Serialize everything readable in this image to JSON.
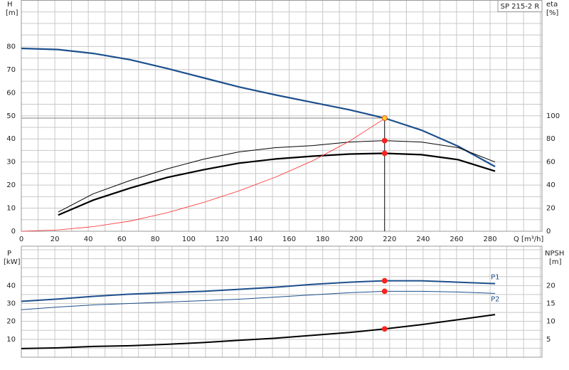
{
  "chart_data": [
    {
      "type": "line",
      "title": "SP 215-2 R",
      "xlabel": "Q [m³/h]",
      "ylabel": "H",
      "yunit": "[m]",
      "y2label": "eta",
      "y2unit": "[%]",
      "xlim": [
        0,
        311
      ],
      "ylim": [
        0,
        100
      ],
      "y2lim": [
        0,
        200
      ],
      "xticks": [
        0,
        20,
        40,
        60,
        80,
        100,
        120,
        140,
        160,
        180,
        200,
        220,
        240,
        260,
        280
      ],
      "yticks": [
        0,
        10,
        20,
        30,
        40,
        50,
        60,
        70,
        80
      ],
      "y2ticks": [
        0,
        20,
        40,
        60,
        80,
        100
      ],
      "grid": true,
      "duty_q": 217,
      "x": [
        0,
        22,
        43,
        65,
        87,
        109,
        130,
        152,
        174,
        196,
        217,
        239,
        261,
        283
      ],
      "series": [
        {
          "color": "#1d4f8c",
          "width": 2.2,
          "duty_marker_color": "#ffd21f",
          "duty_lines": true,
          "values": [
            79.2,
            78.7,
            77,
            74.3,
            70.5,
            66.4,
            62.5,
            59,
            55.8,
            52.6,
            49,
            43.8,
            36.8,
            28
          ]
        },
        {
          "color": "#000000",
          "width": 1,
          "axis": "y2",
          "duty_marker_color": "#ff2020",
          "values": [
            null,
            16.6,
            32.5,
            44,
            54,
            62.5,
            68.7,
            72.4,
            74.2,
            77.3,
            78.5,
            77.3,
            72.4,
            60
          ]
        },
        {
          "color": "#000000",
          "width": 2.2,
          "axis": "y2",
          "duty_marker_color": "#ff2020",
          "values": [
            null,
            14,
            27,
            37.4,
            46.6,
            53.4,
            59,
            62.6,
            65,
            66.9,
            67.5,
            66.3,
            62,
            52
          ]
        },
        {
          "color": "#ff2a2a",
          "width": 0.8,
          "values": [
            0,
            0.6,
            2,
            4.4,
            8,
            12.5,
            17.5,
            23.5,
            30.5,
            39,
            48.8,
            null,
            null,
            null
          ]
        }
      ]
    },
    {
      "type": "line",
      "ylabel": "P",
      "yunit": "[kW]",
      "y2label": "NPSH",
      "y2unit": "[m]",
      "xlim": [
        0,
        311
      ],
      "ylim": [
        0,
        62
      ],
      "y2lim": [
        0,
        31
      ],
      "yticks": [
        10,
        20,
        30,
        40
      ],
      "y2ticks": [
        5,
        10,
        15,
        20
      ],
      "grid": true,
      "x": [
        0,
        22,
        43,
        65,
        87,
        109,
        130,
        152,
        174,
        196,
        217,
        239,
        261,
        283
      ],
      "series": [
        {
          "name": "P1",
          "color": "#1d4f8c",
          "width": 2,
          "duty_marker_color": "#ff2020",
          "values": [
            31.2,
            32.5,
            34,
            35.2,
            36,
            36.8,
            37.9,
            39.1,
            40.7,
            41.9,
            42.7,
            42.7,
            41.9,
            41.1
          ]
        },
        {
          "name": "P2",
          "color": "#1d4f8c",
          "width": 1,
          "duty_marker_color": "#ff2020",
          "values": [
            26.5,
            28,
            29.2,
            30,
            30.8,
            31.6,
            32.4,
            33.6,
            34.8,
            36,
            36.8,
            36.8,
            36.4,
            35.6
          ]
        },
        {
          "color": "#000000",
          "width": 2,
          "axis": "y2",
          "duty_marker_color": "#ff2020",
          "values": [
            2.4,
            2.6,
            3,
            3.2,
            3.6,
            4.1,
            4.7,
            5.3,
            6.1,
            6.9,
            7.9,
            9.1,
            10.5,
            11.9
          ]
        }
      ]
    }
  ]
}
